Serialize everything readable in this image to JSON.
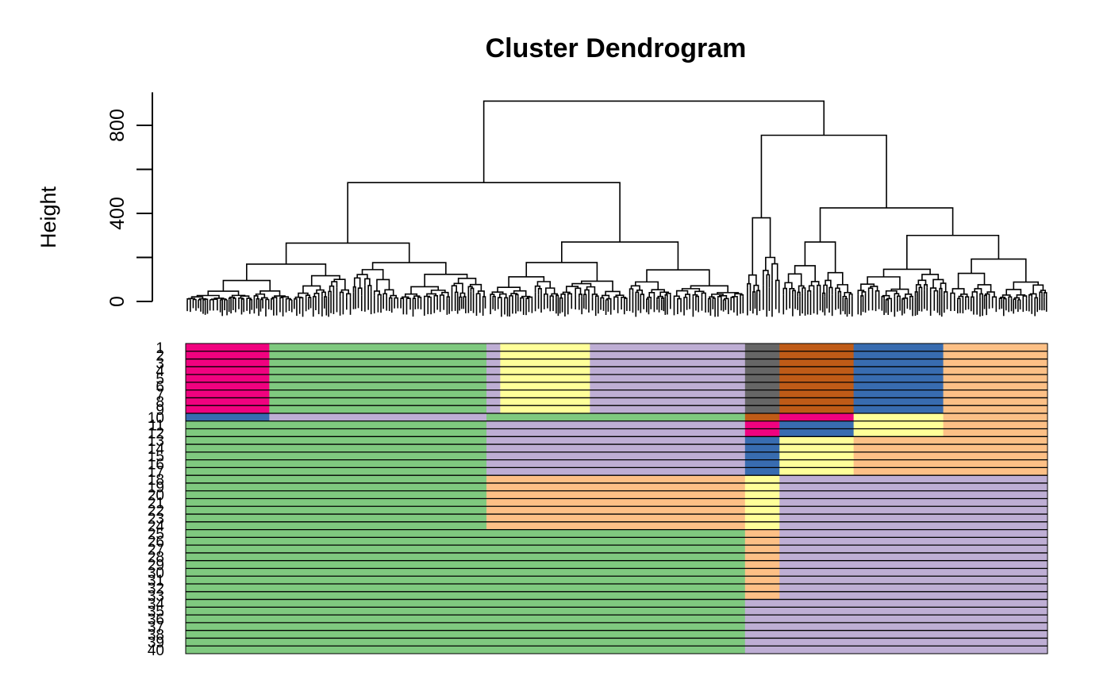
{
  "chart_data": {
    "type": "heatmap",
    "title": "Cluster Dendrogram",
    "ylabel": "Height",
    "xlabel": "",
    "ylim": [
      0,
      950
    ],
    "y_ticks": [
      0,
      400,
      800
    ],
    "y_minor_ticks": [
      200,
      600
    ],
    "dendrogram_top_merges": [
      {
        "name": "root",
        "height": 910
      },
      {
        "name": "left",
        "height": 540
      },
      {
        "name": "right",
        "height": 755
      },
      {
        "name": "right-right",
        "height": 425
      },
      {
        "name": "right-left",
        "height": 380
      },
      {
        "name": "left-left",
        "height": 270
      },
      {
        "name": "left-right",
        "height": 275
      }
    ],
    "row_labels": [
      "1",
      "2",
      "3",
      "4",
      "5",
      "6",
      "7",
      "8",
      "9",
      "10",
      "11",
      "12",
      "13",
      "14",
      "15",
      "16",
      "17",
      "18",
      "19",
      "20",
      "21",
      "22",
      "23",
      "24",
      "25",
      "26",
      "27",
      "28",
      "29",
      "30",
      "31",
      "32",
      "33",
      "34",
      "35",
      "36",
      "37",
      "38",
      "39",
      "40"
    ],
    "cluster_colors": {
      "green": "#7fc97f",
      "purple": "#beaed4",
      "orange": "#fdc086",
      "yellow": "#ffff99",
      "blue": "#386cb0",
      "magenta": "#f0027f",
      "brown": "#bf5b17",
      "gray": "#666666"
    },
    "row_segments": [
      {
        "rows": [
          1,
          9
        ],
        "segments": [
          [
            0,
            0.097,
            "magenta"
          ],
          [
            0.097,
            0.349,
            "green"
          ],
          [
            0.349,
            0.365,
            "purple"
          ],
          [
            0.365,
            0.469,
            "yellow"
          ],
          [
            0.469,
            0.649,
            "purple"
          ],
          [
            0.649,
            0.689,
            "gray"
          ],
          [
            0.689,
            0.775,
            "brown"
          ],
          [
            0.775,
            0.879,
            "blue"
          ],
          [
            0.879,
            1,
            "orange"
          ]
        ]
      },
      {
        "rows": [
          10,
          10
        ],
        "segments": [
          [
            0,
            0.097,
            "blue"
          ],
          [
            0.097,
            0.349,
            "purple"
          ],
          [
            0.349,
            0.649,
            "green"
          ],
          [
            0.649,
            0.689,
            "brown"
          ],
          [
            0.689,
            0.775,
            "magenta"
          ],
          [
            0.775,
            0.879,
            "yellow"
          ],
          [
            0.879,
            1,
            "orange"
          ]
        ]
      },
      {
        "rows": [
          11,
          12
        ],
        "segments": [
          [
            0,
            0.349,
            "green"
          ],
          [
            0.349,
            0.649,
            "purple"
          ],
          [
            0.649,
            0.689,
            "magenta"
          ],
          [
            0.689,
            0.775,
            "blue"
          ],
          [
            0.775,
            0.879,
            "yellow"
          ],
          [
            0.879,
            1,
            "orange"
          ]
        ]
      },
      {
        "rows": [
          13,
          17
        ],
        "segments": [
          [
            0,
            0.349,
            "green"
          ],
          [
            0.349,
            0.649,
            "purple"
          ],
          [
            0.649,
            0.689,
            "blue"
          ],
          [
            0.689,
            0.775,
            "yellow"
          ],
          [
            0.775,
            1,
            "orange"
          ]
        ]
      },
      {
        "rows": [
          18,
          24
        ],
        "segments": [
          [
            0,
            0.349,
            "green"
          ],
          [
            0.349,
            0.649,
            "orange"
          ],
          [
            0.649,
            0.689,
            "yellow"
          ],
          [
            0.689,
            1,
            "purple"
          ]
        ]
      },
      {
        "rows": [
          25,
          33
        ],
        "segments": [
          [
            0,
            0.649,
            "green"
          ],
          [
            0.649,
            0.689,
            "orange"
          ],
          [
            0.689,
            1,
            "purple"
          ]
        ]
      },
      {
        "rows": [
          34,
          40
        ],
        "segments": [
          [
            0,
            0.649,
            "green"
          ],
          [
            0.649,
            1,
            "purple"
          ]
        ]
      }
    ]
  }
}
